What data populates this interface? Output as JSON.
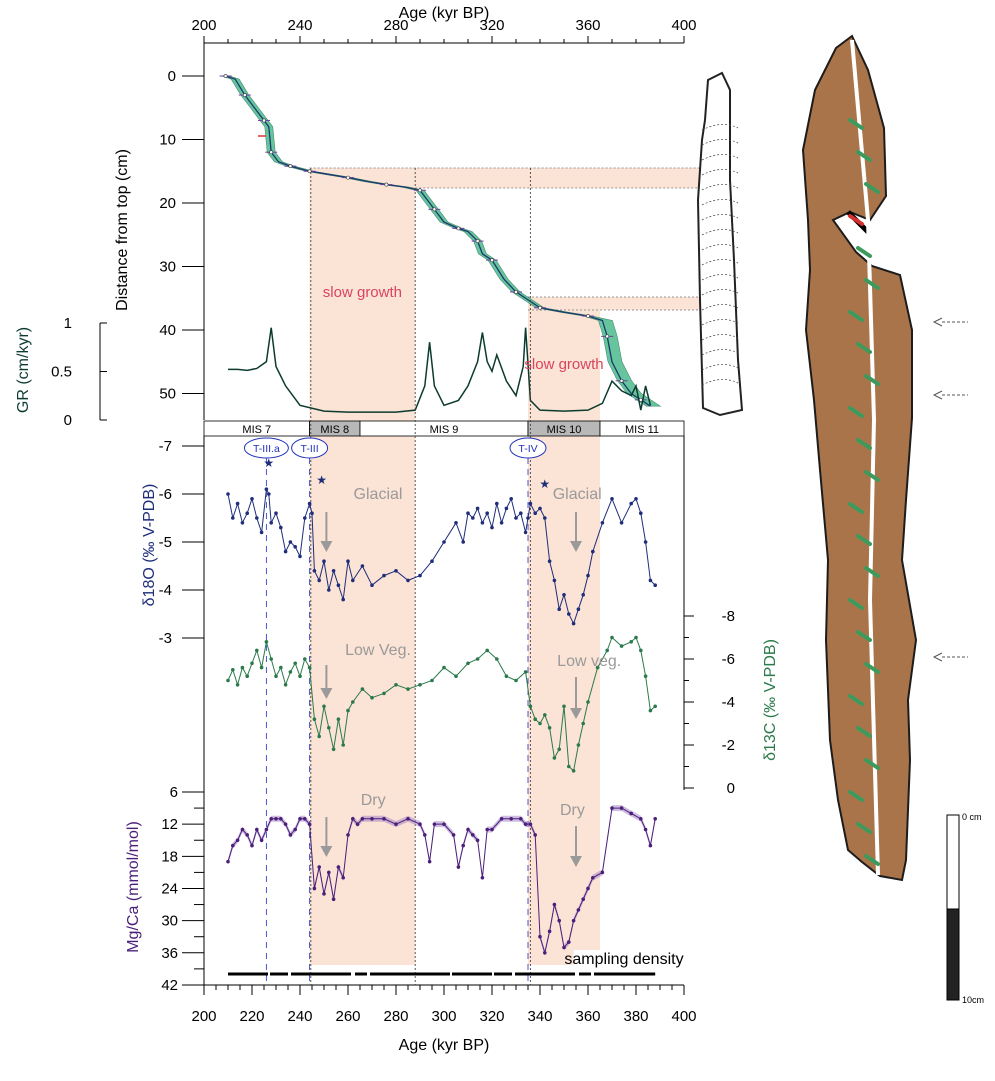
{
  "figure": {
    "top_axis_title": "Age (kyr BP)",
    "bottom_axis_title": "Age (kyr BP)",
    "depth_axis_title": "Distance from top (cm)",
    "gr_axis_title": "GR (cm/kyr)",
    "d18o_axis_title": "δ18O (‰ V-PDB)",
    "d13c_axis_title": "δ13C (‰ V-PDB)",
    "mgca_axis_title": "Mg/Ca (mmol/mol)",
    "annotations": {
      "slow_growth_1": "slow growth",
      "slow_growth_2": "slow growth",
      "glacial_1": "Glacial",
      "glacial_2": "Glacial",
      "lowveg_1": "Low Veg.",
      "lowveg_2": "Low veg.",
      "dry_1": "Dry",
      "dry_2": "Dry",
      "sampling_density": "sampling density"
    },
    "terminations": [
      "T-III.a",
      "T-III",
      "T-IV"
    ],
    "mis_stages": [
      {
        "label": "MIS 7",
        "from": 200,
        "to": 244,
        "shade": false
      },
      {
        "label": "MIS 8",
        "from": 244,
        "to": 265,
        "shade": true
      },
      {
        "label": "MIS 9",
        "from": 265,
        "to": 335,
        "shade": false
      },
      {
        "label": "MIS 10",
        "from": 335,
        "to": 365,
        "shade": true
      },
      {
        "label": "MIS 11",
        "from": 365,
        "to": 400,
        "shade": false
      }
    ],
    "scale_bar": {
      "top_label": "0 cm",
      "bottom_label": "10cm"
    },
    "colors": {
      "envelope": "#4dbb8e",
      "age_model": "#1a3a6e",
      "gr": "#0d3b30",
      "d18o": "#1f2d7a",
      "d13c": "#2b7a4b",
      "mgca": "#4b1f7a",
      "mgca_band": "#a886c8",
      "slow_growth_shade": "#fbe3d5",
      "annotation_red": "#d9445c",
      "annotation_grey": "#9a9a9a"
    }
  },
  "chart_data": [
    {
      "type": "line",
      "title": "",
      "xlabel": "Age (kyr BP)",
      "ylabel": "Distance from top (cm)",
      "xlim": [
        200,
        400
      ],
      "ylim": [
        0,
        55
      ],
      "x_ticks": [
        200,
        240,
        280,
        320,
        360,
        400
      ],
      "y_ticks": [
        0,
        10,
        20,
        30,
        40,
        50
      ],
      "series": [
        {
          "x": [
            209,
            213,
            217,
            221,
            225,
            227,
            228,
            231,
            236,
            240,
            244,
            252,
            260,
            268,
            276,
            284,
            290,
            292,
            296,
            300,
            306,
            310,
            314,
            316,
            320,
            325,
            330,
            334,
            340,
            350,
            360,
            366,
            368,
            370,
            374,
            378,
            382,
            386
          ],
          "y": [
            0,
            0.5,
            3,
            5,
            7,
            8,
            12,
            13.5,
            14.2,
            14.6,
            15,
            15.5,
            16,
            16.6,
            17.1,
            17.5,
            18,
            19,
            21,
            23,
            24,
            24.5,
            26,
            28,
            29,
            32,
            34,
            35,
            36.5,
            37.2,
            37.8,
            38.5,
            41,
            45,
            48,
            50,
            51,
            52
          ]
        }
      ]
    },
    {
      "type": "line",
      "title": "",
      "xlabel": "Age (kyr BP)",
      "ylabel": "GR (cm/kyr)",
      "ylim": [
        0,
        1
      ],
      "y_ticks": [
        0,
        0.5,
        1
      ],
      "series": [
        {
          "x": [
            210,
            214,
            218,
            222,
            226,
            228,
            230,
            234,
            240,
            250,
            260,
            270,
            280,
            288,
            292,
            294,
            296,
            300,
            306,
            310,
            314,
            316,
            318,
            320,
            322,
            326,
            330,
            333,
            334,
            336,
            340,
            350,
            360,
            366,
            370,
            374,
            378,
            380,
            382,
            384,
            386
          ],
          "y": [
            0.47,
            0.47,
            0.46,
            0.48,
            0.55,
            0.9,
            0.5,
            0.3,
            0.1,
            0.04,
            0.03,
            0.03,
            0.03,
            0.05,
            0.3,
            0.75,
            0.3,
            0.1,
            0.15,
            0.3,
            0.55,
            0.85,
            0.55,
            0.45,
            0.62,
            0.35,
            0.2,
            0.5,
            0.9,
            0.15,
            0.05,
            0.04,
            0.05,
            0.12,
            0.35,
            0.25,
            0.2,
            0.3,
            0.05,
            0.3,
            0.1
          ]
        }
      ]
    },
    {
      "type": "line",
      "title": "",
      "xlabel": "Age (kyr BP)",
      "ylabel": "δ18O (‰ V-PDB)",
      "ylim": [
        -7,
        -3
      ],
      "y_ticks": [
        -7,
        -6,
        -5,
        -4,
        -3
      ],
      "series": [
        {
          "x": [
            210,
            212,
            214,
            216,
            218,
            220,
            222,
            224,
            226,
            227,
            228,
            230,
            232,
            234,
            236,
            238,
            240,
            242,
            244,
            245,
            246,
            248,
            250,
            252,
            254,
            256,
            258,
            260,
            262,
            266,
            270,
            275,
            280,
            285,
            290,
            295,
            300,
            305,
            308,
            310,
            312,
            314,
            316,
            318,
            320,
            322,
            324,
            326,
            328,
            330,
            332,
            334,
            335,
            336,
            338,
            340,
            342,
            344,
            346,
            348,
            350,
            352,
            354,
            356,
            358,
            360,
            362,
            366,
            370,
            374,
            378,
            380,
            382,
            384,
            386,
            388
          ],
          "y": [
            -6.0,
            -5.5,
            -5.8,
            -5.4,
            -5.6,
            -5.9,
            -5.5,
            -5.2,
            -6.1,
            -6.0,
            -5.4,
            -5.6,
            -5.3,
            -4.8,
            -5.0,
            -4.9,
            -4.7,
            -5.5,
            -5.8,
            -5.6,
            -4.4,
            -4.2,
            -4.6,
            -4.0,
            -4.4,
            -4.1,
            -3.8,
            -4.6,
            -4.2,
            -4.5,
            -4.1,
            -4.3,
            -4.4,
            -4.2,
            -4.3,
            -4.6,
            -5.0,
            -5.4,
            -5.0,
            -5.6,
            -5.5,
            -5.7,
            -5.4,
            -5.6,
            -5.3,
            -5.8,
            -5.4,
            -5.7,
            -5.9,
            -5.5,
            -5.6,
            -5.2,
            -5.5,
            -5.8,
            -5.6,
            -5.7,
            -5.5,
            -4.6,
            -4.2,
            -3.6,
            -3.9,
            -3.5,
            -3.3,
            -3.6,
            -3.9,
            -4.3,
            -4.8,
            -5.4,
            -5.9,
            -5.4,
            -5.8,
            -5.9,
            -5.6,
            -5.0,
            -4.2,
            -4.1
          ]
        }
      ]
    },
    {
      "type": "line",
      "title": "",
      "xlabel": "Age (kyr BP)",
      "ylabel": "δ13C (‰ V-PDB)",
      "ylim": [
        0,
        -8
      ],
      "y_ticks": [
        -8,
        -6,
        -4,
        -2,
        0
      ],
      "series": [
        {
          "x": [
            210,
            212,
            214,
            216,
            218,
            220,
            222,
            224,
            226,
            228,
            230,
            232,
            234,
            236,
            238,
            240,
            242,
            244,
            246,
            248,
            250,
            252,
            254,
            256,
            258,
            260,
            262,
            266,
            270,
            275,
            280,
            285,
            290,
            295,
            300,
            305,
            310,
            314,
            318,
            322,
            326,
            330,
            334,
            336,
            338,
            340,
            342,
            344,
            346,
            348,
            350,
            352,
            354,
            356,
            358,
            360,
            364,
            368,
            370,
            374,
            378,
            380,
            382,
            384,
            386,
            388
          ],
          "y": [
            -5.0,
            -5.5,
            -4.8,
            -5.6,
            -5.2,
            -5.8,
            -6.4,
            -5.6,
            -6.8,
            -6.0,
            -5.2,
            -5.6,
            -4.8,
            -5.4,
            -5.8,
            -5.2,
            -6.0,
            -5.6,
            -3.2,
            -2.4,
            -3.8,
            -2.8,
            -1.8,
            -3.2,
            -2.0,
            -3.6,
            -4.0,
            -4.6,
            -4.2,
            -4.4,
            -4.8,
            -4.6,
            -4.8,
            -5.0,
            -5.6,
            -5.2,
            -5.8,
            -6.0,
            -6.4,
            -6.0,
            -5.2,
            -5.0,
            -5.4,
            -3.8,
            -3.2,
            -3.0,
            -3.4,
            -2.8,
            -1.4,
            -1.8,
            -3.8,
            -1.0,
            -0.8,
            -2.0,
            -3.0,
            -4.0,
            -5.6,
            -6.4,
            -7.0,
            -6.6,
            -6.8,
            -7.0,
            -6.4,
            -5.2,
            -3.6,
            -3.8
          ]
        }
      ]
    },
    {
      "type": "line",
      "title": "",
      "xlabel": "Age (kyr BP)",
      "ylabel": "Mg/Ca (mmol/mol)",
      "ylim": [
        6,
        42
      ],
      "y_ticks": [
        6,
        12,
        18,
        24,
        30,
        36,
        42
      ],
      "series": [
        {
          "x": [
            210,
            212,
            214,
            216,
            218,
            220,
            222,
            224,
            226,
            228,
            230,
            232,
            234,
            236,
            238,
            240,
            242,
            244,
            246,
            248,
            250,
            252,
            254,
            256,
            258,
            260,
            262,
            264,
            266,
            270,
            275,
            280,
            285,
            290,
            292,
            294,
            296,
            300,
            304,
            306,
            308,
            310,
            312,
            314,
            316,
            318,
            320,
            324,
            328,
            332,
            334,
            336,
            338,
            340,
            342,
            344,
            346,
            348,
            350,
            352,
            354,
            356,
            358,
            360,
            362,
            366,
            370,
            374,
            378,
            382,
            384,
            386,
            388
          ],
          "y": [
            19,
            16,
            15,
            13,
            14,
            16,
            13,
            15,
            13,
            11,
            11,
            11,
            12,
            14,
            13,
            11,
            11,
            12,
            24,
            20,
            25,
            21,
            26,
            20,
            22,
            14,
            11,
            12,
            11,
            11,
            11,
            12,
            11,
            12,
            14,
            19,
            12,
            12,
            14,
            20,
            16,
            13,
            14,
            15,
            22,
            13,
            13,
            11,
            11,
            11,
            12,
            12,
            14,
            33,
            36,
            32,
            27,
            30,
            35,
            34,
            30,
            28,
            26,
            24,
            22,
            21,
            9,
            9,
            10,
            11,
            13,
            16,
            11
          ]
        }
      ]
    }
  ]
}
